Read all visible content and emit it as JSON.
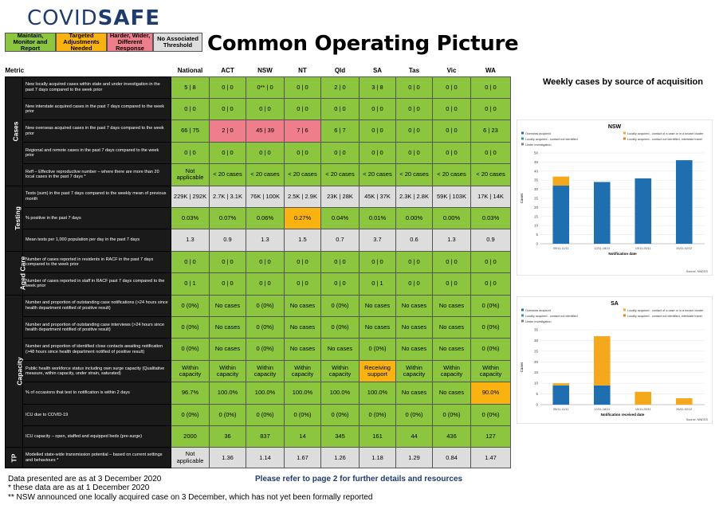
{
  "logo": {
    "prefix": "COVID",
    "suffix": "SAFE"
  },
  "legend": [
    {
      "label": "Maintain, Monitor and Report",
      "color": "#8cc63f"
    },
    {
      "label": "Targeted Adjustments Needed",
      "color": "#f9b20f"
    },
    {
      "label": "Harder, Wider, Different Response",
      "color": "#ee7e89"
    },
    {
      "label": "No Associated Threshold",
      "color": "#dddddd"
    }
  ],
  "title": "Common Operating Picture",
  "columns": [
    "Metric",
    "National",
    "ACT",
    "NSW",
    "NT",
    "Qld",
    "SA",
    "Tas",
    "Vic",
    "WA"
  ],
  "sections": [
    {
      "name": "Cases",
      "rows": [
        {
          "desc": "New locally acquired cases within state and under investigation in the past 7 days compared to the week prior",
          "cells": [
            [
              "5 | 8",
              "g"
            ],
            [
              "0 | 0",
              "g"
            ],
            [
              "0** | 0",
              "g"
            ],
            [
              "0 | 0",
              "g"
            ],
            [
              "2 | 0",
              "g"
            ],
            [
              "3 | 8",
              "g"
            ],
            [
              "0 | 0",
              "g"
            ],
            [
              "0 | 0",
              "g"
            ],
            [
              "0 | 0",
              "g"
            ]
          ]
        },
        {
          "desc": "New interstate acquired cases in the past 7 days compared to the week prior",
          "cells": [
            [
              "0 | 0",
              "g"
            ],
            [
              "0 | 0",
              "g"
            ],
            [
              "0 | 0",
              "g"
            ],
            [
              "0 | 0",
              "g"
            ],
            [
              "0 | 0",
              "g"
            ],
            [
              "0 | 0",
              "g"
            ],
            [
              "0 | 0",
              "g"
            ],
            [
              "0 | 0",
              "g"
            ],
            [
              "0 | 0",
              "g"
            ]
          ]
        },
        {
          "desc": "New overseas acquired cases in the past 7 days compared to the week prior",
          "cells": [
            [
              "66 | 75",
              "g"
            ],
            [
              "2 | 0",
              "r"
            ],
            [
              "45 | 39",
              "r"
            ],
            [
              "7 | 6",
              "r"
            ],
            [
              "6 | 7",
              "g"
            ],
            [
              "0 | 0",
              "g"
            ],
            [
              "0 | 0",
              "g"
            ],
            [
              "0 | 0",
              "g"
            ],
            [
              "6 | 23",
              "g"
            ]
          ]
        },
        {
          "desc": "Regional and remote cases in the past 7 days compared to the week prior",
          "cells": [
            [
              "0 | 0",
              "g"
            ],
            [
              "0 | 0",
              "g"
            ],
            [
              "0 | 0",
              "g"
            ],
            [
              "0 | 0",
              "g"
            ],
            [
              "0 | 0",
              "g"
            ],
            [
              "0 | 0",
              "g"
            ],
            [
              "0 | 0",
              "g"
            ],
            [
              "0 | 0",
              "g"
            ],
            [
              "0 | 0",
              "g"
            ]
          ]
        },
        {
          "desc": "Reff – Effective reproductive number – where there are more than 20 local cases in the past 7 days *",
          "cells": [
            [
              "Not applicable",
              "g"
            ],
            [
              "< 20 cases",
              "g"
            ],
            [
              "< 20 cases",
              "g"
            ],
            [
              "< 20 cases",
              "g"
            ],
            [
              "< 20 cases",
              "g"
            ],
            [
              "< 20 cases",
              "g"
            ],
            [
              "< 20 cases",
              "g"
            ],
            [
              "< 20 cases",
              "g"
            ],
            [
              "< 20 cases",
              "g"
            ]
          ]
        }
      ]
    },
    {
      "name": "Testing",
      "rows": [
        {
          "desc": "Tests (sum) in the past 7 days compared to the weekly mean of previous month",
          "cells": [
            [
              "229K | 292K",
              "n"
            ],
            [
              "2.7K | 3.1K",
              "n"
            ],
            [
              "76K | 100K",
              "n"
            ],
            [
              "2.5K | 2.9K",
              "n"
            ],
            [
              "23K | 28K",
              "n"
            ],
            [
              "45K | 37K",
              "n"
            ],
            [
              "2.3K | 2.8K",
              "n"
            ],
            [
              "59K | 103K",
              "n"
            ],
            [
              "17K | 14K",
              "n"
            ]
          ]
        },
        {
          "desc": "% positive in the past 7 days",
          "cells": [
            [
              "0.03%",
              "g"
            ],
            [
              "0.07%",
              "g"
            ],
            [
              "0.06%",
              "g"
            ],
            [
              "0.27%",
              "o"
            ],
            [
              "0.04%",
              "g"
            ],
            [
              "0.01%",
              "g"
            ],
            [
              "0.00%",
              "g"
            ],
            [
              "0.00%",
              "g"
            ],
            [
              "0.03%",
              "g"
            ]
          ]
        },
        {
          "desc": "Mean tests per 1,000 population per day in the past 7 days",
          "cells": [
            [
              "1.3",
              "n"
            ],
            [
              "0.9",
              "n"
            ],
            [
              "1.3",
              "n"
            ],
            [
              "1.5",
              "n"
            ],
            [
              "0.7",
              "n"
            ],
            [
              "3.7",
              "n"
            ],
            [
              "0.6",
              "n"
            ],
            [
              "1.3",
              "n"
            ],
            [
              "0.9",
              "n"
            ]
          ]
        }
      ]
    },
    {
      "name": "Aged Care",
      "rows": [
        {
          "desc": "Number of cases reported in residents in RACF in the past 7 days compared to the week prior",
          "cells": [
            [
              "0 | 0",
              "g"
            ],
            [
              "0 | 0",
              "g"
            ],
            [
              "0 | 0",
              "g"
            ],
            [
              "0 | 0",
              "g"
            ],
            [
              "0 | 0",
              "g"
            ],
            [
              "0 | 0",
              "g"
            ],
            [
              "0 | 0",
              "g"
            ],
            [
              "0 | 0",
              "g"
            ],
            [
              "0 | 0",
              "g"
            ]
          ]
        },
        {
          "desc": "Number of cases reported in staff in RACF past 7 days compared to the week prior",
          "cells": [
            [
              "0 | 1",
              "g"
            ],
            [
              "0 | 0",
              "g"
            ],
            [
              "0 | 0",
              "g"
            ],
            [
              "0 | 0",
              "g"
            ],
            [
              "0 | 0",
              "g"
            ],
            [
              "0 | 1",
              "g"
            ],
            [
              "0 | 0",
              "g"
            ],
            [
              "0 | 0",
              "g"
            ],
            [
              "0 | 0",
              "g"
            ]
          ]
        }
      ]
    },
    {
      "name": "Capacity",
      "rows": [
        {
          "desc": "Number and proportion of outstanding case notifications (>24 hours since health department notified of positive result)",
          "cells": [
            [
              "0 (0%)",
              "g"
            ],
            [
              "No cases",
              "g"
            ],
            [
              "0 (0%)",
              "g"
            ],
            [
              "No cases",
              "g"
            ],
            [
              "0 (0%)",
              "g"
            ],
            [
              "No cases",
              "g"
            ],
            [
              "No cases",
              "g"
            ],
            [
              "No cases",
              "g"
            ],
            [
              "0 (0%)",
              "g"
            ]
          ]
        },
        {
          "desc": "Number and proportion of outstanding case interviews (>24 hours since health department notified of positive result)",
          "cells": [
            [
              "0 (0%)",
              "g"
            ],
            [
              "No cases",
              "g"
            ],
            [
              "0 (0%)",
              "g"
            ],
            [
              "No cases",
              "g"
            ],
            [
              "0 (0%)",
              "g"
            ],
            [
              "No cases",
              "g"
            ],
            [
              "No cases",
              "g"
            ],
            [
              "No cases",
              "g"
            ],
            [
              "0 (0%)",
              "g"
            ]
          ]
        },
        {
          "desc": "Number and proportion of identified close contacts awaiting notification (>48 hours since health department notified of positive result)",
          "cells": [
            [
              "0 (0%)",
              "g"
            ],
            [
              "No cases",
              "g"
            ],
            [
              "0 (0%)",
              "g"
            ],
            [
              "No cases",
              "g"
            ],
            [
              "No cases",
              "g"
            ],
            [
              "0 (0%)",
              "g"
            ],
            [
              "No cases",
              "g"
            ],
            [
              "No cases",
              "g"
            ],
            [
              "0 (0%)",
              "g"
            ]
          ]
        },
        {
          "desc": "Public health workforce status including own surge capacity (Qualitative measure, within capacity, under strain, saturated)",
          "cells": [
            [
              "Within capacity",
              "g"
            ],
            [
              "Within capacity",
              "g"
            ],
            [
              "Within capacity",
              "g"
            ],
            [
              "Within capacity",
              "g"
            ],
            [
              "Within capacity",
              "g"
            ],
            [
              "Receiving support",
              "o"
            ],
            [
              "Within capacity",
              "g"
            ],
            [
              "Within capacity",
              "g"
            ],
            [
              "Within capacity",
              "g"
            ]
          ]
        },
        {
          "desc": "% of occasions that test to notification is within 2 days",
          "cells": [
            [
              "96.7%",
              "g"
            ],
            [
              "100.0%",
              "g"
            ],
            [
              "100.0%",
              "g"
            ],
            [
              "100.0%",
              "g"
            ],
            [
              "100.0%",
              "g"
            ],
            [
              "100.0%",
              "g"
            ],
            [
              "No cases",
              "g"
            ],
            [
              "No cases",
              "g"
            ],
            [
              "90.0%",
              "o"
            ]
          ]
        },
        {
          "desc": "ICU due to COVID-19",
          "cells": [
            [
              "0 (0%)",
              "g"
            ],
            [
              "0 (0%)",
              "g"
            ],
            [
              "0 (0%)",
              "g"
            ],
            [
              "0 (0%)",
              "g"
            ],
            [
              "0 (0%)",
              "g"
            ],
            [
              "0 (0%)",
              "g"
            ],
            [
              "0 (0%)",
              "g"
            ],
            [
              "0 (0%)",
              "g"
            ],
            [
              "0 (0%)",
              "g"
            ]
          ]
        },
        {
          "desc": "ICU capacity – open, staffed and equipped beds (pre-surge)",
          "cells": [
            [
              "2000",
              "g"
            ],
            [
              "36",
              "g"
            ],
            [
              "837",
              "g"
            ],
            [
              "14",
              "g"
            ],
            [
              "345",
              "g"
            ],
            [
              "161",
              "g"
            ],
            [
              "44",
              "g"
            ],
            [
              "436",
              "g"
            ],
            [
              "127",
              "g"
            ]
          ]
        }
      ]
    },
    {
      "name": "TP",
      "rows": [
        {
          "desc": "Modelled state-wide transmission potential – based on current settings and behaviours *",
          "cells": [
            [
              "Not applicable",
              "n"
            ],
            [
              "1.36",
              "n"
            ],
            [
              "1.14",
              "n"
            ],
            [
              "1.67",
              "n"
            ],
            [
              "1.26",
              "n"
            ],
            [
              "1.18",
              "n"
            ],
            [
              "1.29",
              "n"
            ],
            [
              "0.84",
              "n"
            ],
            [
              "1.47",
              "n"
            ]
          ]
        }
      ]
    }
  ],
  "footer": {
    "line1": "Data presented are as at 3 December 2020",
    "line2": "* these data are as at 1 December 2020",
    "line3": "** NSW announced one locally acquired case on 3 December, which has not yet been formally reported",
    "refer": "Please refer to page 2 for further details and resources"
  },
  "charts_heading": "Weekly cases by source of acquisition",
  "chart_data": [
    {
      "type": "bar",
      "stacked": true,
      "title": "NSW",
      "xlabel": "Notification date",
      "ylabel": "Cases",
      "ylim": [
        0,
        50
      ],
      "yticks": [
        0,
        5,
        10,
        15,
        20,
        25,
        30,
        35,
        40,
        45,
        50
      ],
      "categories": [
        "05/11-11/11",
        "12/11-18/11",
        "19/11-25/11",
        "26/11-02/12"
      ],
      "series": [
        {
          "name": "Overseas acquired",
          "color": "#1f6fb0",
          "values": [
            32,
            34,
            36,
            46
          ]
        },
        {
          "name": "Locally acquired - contact of a case or in a known cluster",
          "color": "#f4a81d",
          "values": [
            5,
            0,
            0,
            0
          ]
        },
        {
          "name": "Locally acquired - contact not identified",
          "color": "#2a9d8f",
          "values": [
            0,
            0,
            0,
            0
          ]
        },
        {
          "name": "Locally acquired - contact not identified, interstate travel",
          "color": "#e67e22",
          "values": [
            0,
            0,
            0,
            0
          ]
        },
        {
          "name": "Under investigation",
          "color": "#7f7f7f",
          "values": [
            0,
            0,
            0,
            0
          ]
        }
      ],
      "legend_position": "top",
      "source": "Source: NNDSS"
    },
    {
      "type": "bar",
      "stacked": true,
      "title": "SA",
      "xlabel": "Notification received date",
      "ylabel": "Cases",
      "ylim": [
        0,
        35
      ],
      "yticks": [
        0,
        5,
        10,
        15,
        20,
        25,
        30,
        35
      ],
      "categories": [
        "05/11-11/11",
        "12/11-18/11",
        "19/11-25/11",
        "26/11-02/12"
      ],
      "series": [
        {
          "name": "Overseas acquired",
          "color": "#1f6fb0",
          "values": [
            9,
            9,
            0,
            0
          ]
        },
        {
          "name": "Locally acquired - contact of a case or in a known cluster",
          "color": "#f4a81d",
          "values": [
            1,
            23,
            6,
            3
          ]
        },
        {
          "name": "Locally acquired - contact not identified",
          "color": "#2a9d8f",
          "values": [
            0,
            0,
            0,
            0
          ]
        },
        {
          "name": "Locally acquired - contact not identified, interstate travel",
          "color": "#e67e22",
          "values": [
            0,
            0,
            0,
            0
          ]
        },
        {
          "name": "Under investigation",
          "color": "#7f7f7f",
          "values": [
            0,
            0,
            0,
            0
          ]
        }
      ],
      "legend_position": "top",
      "source": "Source: NNDSS"
    }
  ]
}
